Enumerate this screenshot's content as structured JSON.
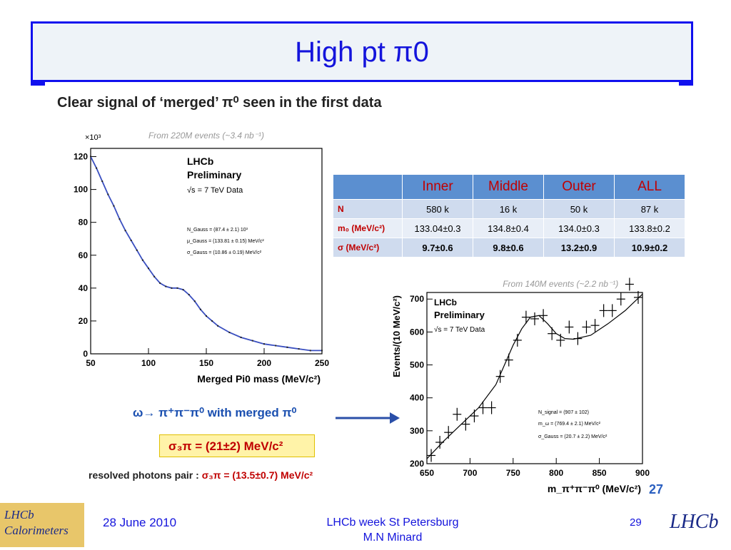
{
  "slide": {
    "title": "High pt π0",
    "headline": "Clear signal of ‘merged’ π⁰ seen in the first data",
    "omega_label": "ω→ π⁺π⁻π⁰ with merged π⁰",
    "sigma_3pi": "σ₃π  = (21±2)  MeV/c²",
    "resolved_label": "resolved photons pair :",
    "resolved_value": "σ₃π  = (13.5±0.7)  MeV/c²",
    "page_number_small": "27"
  },
  "footer": {
    "logo_left": "LHCb Calorimeters",
    "date": "28 June 2010",
    "event_line1": "LHCb week St Petersburg",
    "event_line2": "M.N Minard",
    "page": "29",
    "logo_right": "LHCb"
  },
  "table": {
    "headers": [
      "",
      "Inner",
      "Middle",
      "Outer",
      "ALL"
    ],
    "rows": [
      {
        "label": "N",
        "values": [
          "580 k",
          "16 k",
          "50 k",
          "87 k"
        ]
      },
      {
        "label": "m₀ (MeV/c²)",
        "values": [
          "133.04±0.3",
          "134.8±0.4",
          "134.0±0.3",
          "133.8±0.2"
        ]
      },
      {
        "label": "σ  (MeV/c²)",
        "values": [
          "9.7±0.6",
          "9.8±0.6",
          "13.2±0.9",
          "10.9±0.2"
        ]
      }
    ]
  },
  "chart_data": [
    {
      "type": "line",
      "title": "From 220M events (~3.4 nb⁻¹)",
      "xlabel": "Merged Pi0 mass (MeV/c²)",
      "ylabel": "",
      "y_multiplier": "×10³",
      "xlim": [
        50,
        250
      ],
      "ylim": [
        0,
        125
      ],
      "xticks": [
        "50",
        "100",
        "150",
        "200",
        "250"
      ],
      "yticks": [
        "0",
        "20",
        "40",
        "60",
        "80",
        "100",
        "120"
      ],
      "annotations": [
        "LHCb",
        "Preliminary",
        "√s = 7 TeV Data",
        "N_Gauss = (87.4 ± 2.1) 10³",
        "μ_Gauss = (133.81 ± 0.15) MeV/c²",
        "σ_Gauss = (10.86 ± 0.19)  MeV/c²"
      ],
      "x": [
        50,
        55,
        60,
        65,
        70,
        75,
        80,
        85,
        90,
        95,
        100,
        105,
        110,
        115,
        120,
        125,
        130,
        135,
        140,
        145,
        150,
        155,
        160,
        170,
        180,
        190,
        200,
        210,
        220,
        230,
        240,
        250
      ],
      "y": [
        120,
        113,
        105,
        97,
        90,
        82,
        75,
        69,
        63,
        57,
        52,
        47,
        43,
        41,
        40,
        40,
        39,
        36,
        32,
        27,
        23,
        20,
        17,
        13,
        10,
        8,
        6,
        5,
        4,
        3,
        2,
        2
      ],
      "colors": {
        "data": "#222222",
        "fit": "#3a4fc0"
      }
    },
    {
      "type": "scatter",
      "title": "From 140M events (~2.2 nb⁻¹)",
      "xlabel": "m_π⁺π⁻π⁰ (MeV/c²)",
      "ylabel": "Events/(10 MeV/c²)",
      "xlim": [
        650,
        900
      ],
      "ylim": [
        200,
        720
      ],
      "xticks": [
        "650",
        "700",
        "750",
        "800",
        "850",
        "900"
      ],
      "yticks": [
        "200",
        "300",
        "400",
        "500",
        "600",
        "700"
      ],
      "annotations": [
        "LHCb",
        "Preliminary",
        "√s = 7 TeV Data",
        "N_signal = (907 ± 102)",
        "m_ω = (769.4 ± 2.1) MeV/c²",
        "σ_Gauss = (20.7 ± 2.2)  MeV/c²"
      ],
      "x": [
        655,
        665,
        675,
        685,
        695,
        705,
        715,
        725,
        735,
        745,
        755,
        765,
        775,
        785,
        795,
        805,
        815,
        825,
        835,
        845,
        855,
        865,
        875,
        885,
        895
      ],
      "y": [
        225,
        265,
        295,
        350,
        320,
        345,
        370,
        370,
        465,
        515,
        575,
        645,
        640,
        650,
        595,
        575,
        615,
        580,
        615,
        620,
        665,
        665,
        700,
        745,
        705
      ],
      "fit_x": [
        650,
        670,
        690,
        710,
        730,
        750,
        760,
        770,
        780,
        790,
        800,
        810,
        820,
        840,
        860,
        880,
        900
      ],
      "fit_y": [
        215,
        270,
        320,
        370,
        440,
        560,
        610,
        645,
        650,
        625,
        595,
        580,
        578,
        590,
        625,
        665,
        715
      ]
    }
  ]
}
